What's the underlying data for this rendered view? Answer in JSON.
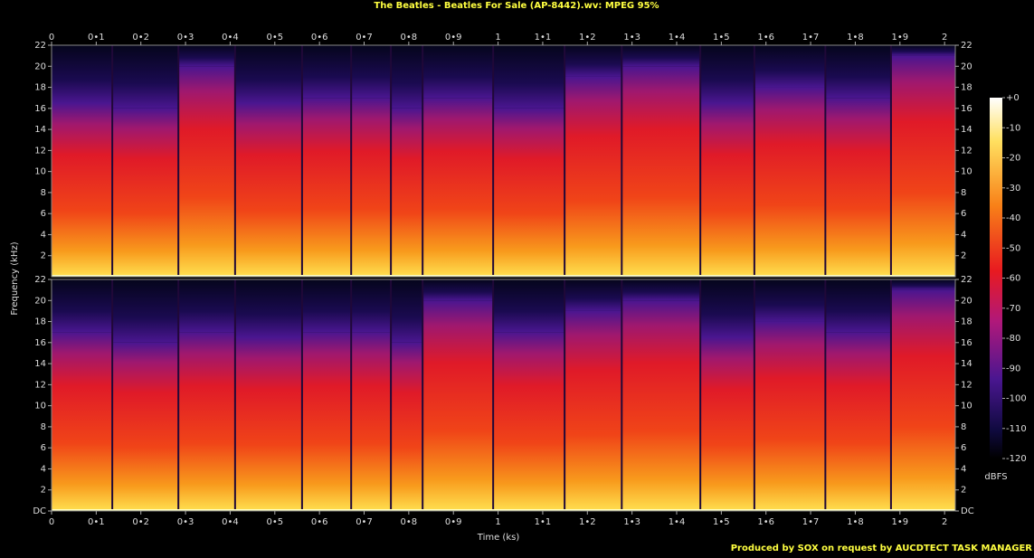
{
  "chart_data": {
    "type": "spectrogram",
    "title": "The Beatles - Beatles For Sale (AP-8442).wv: MPEG 95%",
    "xlabel": "Time (ks)",
    "ylabel": "Frequency (kHz)",
    "footer": "Produced by SOX on request by AUCDTECT TASK MANAGER",
    "colorbar_label": "dBFS",
    "xlim": [
      0,
      2.024
    ],
    "xticks": [
      0,
      {
        "value": 0.1,
        "label": "0•1"
      },
      {
        "value": 0.2,
        "label": "0•2"
      },
      {
        "value": 0.3,
        "label": "0•3"
      },
      {
        "value": 0.4,
        "label": "0•4"
      },
      {
        "value": 0.5,
        "label": "0•5"
      },
      {
        "value": 0.6,
        "label": "0•6"
      },
      {
        "value": 0.7,
        "label": "0•7"
      },
      {
        "value": 0.8,
        "label": "0•8"
      },
      {
        "value": 0.9,
        "label": "0•9"
      },
      1,
      {
        "value": 1.1,
        "label": "1•1"
      },
      {
        "value": 1.2,
        "label": "1•2"
      },
      {
        "value": 1.3,
        "label": "1•3"
      },
      {
        "value": 1.4,
        "label": "1•4"
      },
      {
        "value": 1.5,
        "label": "1•5"
      },
      {
        "value": 1.6,
        "label": "1•6"
      },
      {
        "value": 1.7,
        "label": "1•7"
      },
      {
        "value": 1.8,
        "label": "1•8"
      },
      {
        "value": 1.9,
        "label": "1•9"
      },
      2
    ],
    "ylim": [
      0,
      22
    ],
    "bins": [
      0,
      0.136,
      0.284,
      0.411,
      0.561,
      0.671,
      0.76,
      0.831,
      0.989,
      1.149,
      1.277,
      1.453,
      1.574,
      1.733,
      1.88,
      2.024
    ],
    "panels": [
      {
        "yticks": [
          2,
          4,
          6,
          8,
          10,
          12,
          14,
          16,
          18,
          20,
          22
        ],
        "values": [
          16.5,
          16,
          20,
          16.5,
          17,
          17,
          16,
          17,
          16,
          19,
          20,
          16.5,
          18,
          17,
          21
        ]
      },
      {
        "yticks": [
          {
            "value": 0,
            "label": "DC"
          },
          2,
          4,
          6,
          8,
          10,
          12,
          14,
          16,
          18,
          20,
          22
        ],
        "values": [
          17,
          16,
          17,
          16.5,
          17,
          17,
          16,
          20,
          17,
          19,
          20,
          16.5,
          18,
          17,
          21
        ]
      }
    ],
    "clim": [
      -120,
      0
    ],
    "cticks": [
      {
        "value": 0,
        "label": "+0"
      },
      -10,
      -20,
      -30,
      -40,
      -50,
      -60,
      -70,
      -80,
      -90,
      -100,
      -110,
      -120
    ]
  }
}
